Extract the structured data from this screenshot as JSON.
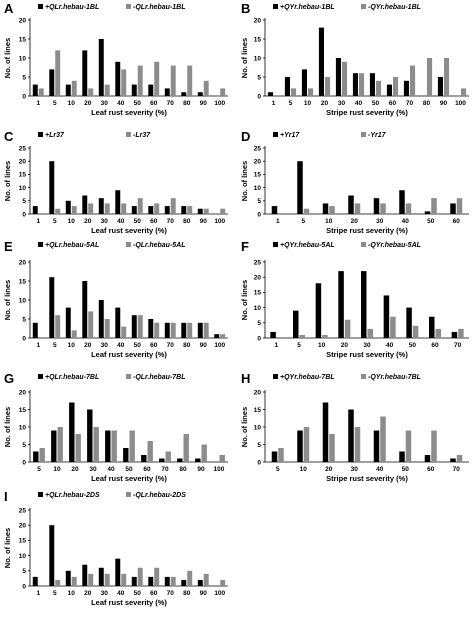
{
  "colors": {
    "pos": "#000000",
    "neg": "#8c8c8c"
  },
  "chart_data": [
    {
      "id": "A",
      "type": "bar",
      "panel_label": "A",
      "categories": [
        "1",
        "5",
        "10",
        "20",
        "30",
        "40",
        "50",
        "60",
        "70",
        "80",
        "90",
        "100"
      ],
      "series": [
        {
          "name": "+QLr.hebau-1BL",
          "values": [
            3,
            7,
            3,
            12,
            15,
            9,
            3,
            3,
            2,
            1,
            1,
            0
          ]
        },
        {
          "name": "-QLr.hebau-1BL",
          "values": [
            2,
            12,
            4,
            2,
            3,
            7,
            8,
            9,
            8,
            8,
            4,
            2
          ]
        }
      ],
      "ylim": [
        0,
        20
      ],
      "yticks": [
        0,
        5,
        10,
        15,
        20
      ],
      "xlabel": "Leaf rust severity (%)",
      "ylabel": "No. of lines"
    },
    {
      "id": "B",
      "type": "bar",
      "panel_label": "B",
      "categories": [
        "1",
        "5",
        "10",
        "20",
        "30",
        "40",
        "50",
        "60",
        "70",
        "80",
        "90",
        "100"
      ],
      "series": [
        {
          "name": "+QYr.hebau-1BL",
          "values": [
            1,
            5,
            7,
            18,
            10,
            6,
            6,
            3,
            4,
            0,
            5,
            0
          ]
        },
        {
          "name": "-QYr.hebau-1BL",
          "values": [
            0,
            2,
            2,
            5,
            9,
            6,
            4,
            5,
            8,
            10,
            10,
            2
          ]
        }
      ],
      "ylim": [
        0,
        20
      ],
      "yticks": [
        0,
        5,
        10,
        15,
        20
      ],
      "xlabel": "Stripe rust severity (%)",
      "ylabel": "No. of lines"
    },
    {
      "id": "C",
      "type": "bar",
      "panel_label": "C",
      "categories": [
        "1",
        "5",
        "10",
        "20",
        "30",
        "40",
        "50",
        "60",
        "70",
        "80",
        "90",
        "100"
      ],
      "series": [
        {
          "name": "+Lr37",
          "values": [
            3,
            20,
            5,
            7,
            6,
            9,
            3,
            3,
            3,
            3,
            2,
            0
          ]
        },
        {
          "name": "-Lr37",
          "values": [
            0,
            2,
            3,
            4,
            4,
            4,
            6,
            4,
            6,
            3,
            2,
            2
          ]
        }
      ],
      "ylim": [
        0,
        25
      ],
      "yticks": [
        0,
        5,
        10,
        15,
        20,
        25
      ],
      "xlabel": "Leaf rust severity (%)",
      "ylabel": "No. of lines"
    },
    {
      "id": "D",
      "type": "bar",
      "panel_label": "D",
      "categories": [
        "1",
        "5",
        "10",
        "20",
        "30",
        "40",
        "50",
        "60"
      ],
      "series": [
        {
          "name": "+Yr17",
          "values": [
            3,
            20,
            4,
            7,
            6,
            9,
            1,
            4
          ]
        },
        {
          "name": "-Yr17",
          "values": [
            0,
            2,
            3,
            4,
            4,
            4,
            6,
            6
          ]
        }
      ],
      "ylim": [
        0,
        25
      ],
      "yticks": [
        0,
        5,
        10,
        15,
        20,
        25
      ],
      "xlabel": "Stripe rust severity (%)",
      "ylabel": "No. of lines"
    },
    {
      "id": "E",
      "type": "bar",
      "panel_label": "E",
      "categories": [
        "1",
        "5",
        "10",
        "20",
        "30",
        "40",
        "50",
        "60",
        "70",
        "80",
        "90",
        "100"
      ],
      "series": [
        {
          "name": "+QLr.hebau-5AL",
          "values": [
            4,
            16,
            8,
            15,
            10,
            8,
            6,
            5,
            4,
            4,
            4,
            1
          ]
        },
        {
          "name": "-QLr.hebau-5AL",
          "values": [
            0,
            6,
            2,
            7,
            5,
            3,
            6,
            4,
            4,
            4,
            4,
            1
          ]
        }
      ],
      "ylim": [
        0,
        20
      ],
      "yticks": [
        0,
        5,
        10,
        15,
        20
      ],
      "xlabel": "Leaf rust severity (%)",
      "ylabel": "No. of lines"
    },
    {
      "id": "F",
      "type": "bar",
      "panel_label": "F",
      "categories": [
        "1",
        "5",
        "10",
        "20",
        "30",
        "40",
        "50",
        "60",
        "70"
      ],
      "series": [
        {
          "name": "+QYr.hebau-5AL",
          "values": [
            2,
            9,
            18,
            22,
            22,
            14,
            10,
            7,
            2
          ]
        },
        {
          "name": "-QYr.hebau-5AL",
          "values": [
            0,
            1,
            1,
            6,
            3,
            7,
            4,
            3,
            3
          ]
        }
      ],
      "ylim": [
        0,
        25
      ],
      "yticks": [
        0,
        5,
        10,
        15,
        20,
        25
      ],
      "xlabel": "Stripe rust severity (%)",
      "ylabel": "No. of lines"
    },
    {
      "id": "G",
      "type": "bar",
      "panel_label": "G",
      "categories": [
        "5",
        "10",
        "20",
        "30",
        "40",
        "50",
        "60",
        "70",
        "80",
        "90",
        "100"
      ],
      "series": [
        {
          "name": "+QLr.hebau-7BL",
          "values": [
            3,
            9,
            17,
            15,
            9,
            4,
            2,
            1,
            1,
            1,
            0
          ]
        },
        {
          "name": "-QLr.hebau-7BL",
          "values": [
            4,
            10,
            8,
            10,
            9,
            9,
            6,
            3,
            8,
            5,
            2
          ]
        }
      ],
      "ylim": [
        0,
        20
      ],
      "yticks": [
        0,
        5,
        10,
        15,
        20
      ],
      "xlabel": "Leaf rust severity (%)",
      "ylabel": "No. of lines"
    },
    {
      "id": "H",
      "type": "bar",
      "panel_label": "H",
      "categories": [
        "5",
        "10",
        "20",
        "30",
        "40",
        "50",
        "60",
        "70"
      ],
      "series": [
        {
          "name": "+QYr.hebau-7BL",
          "values": [
            3,
            9,
            17,
            15,
            9,
            3,
            2,
            1
          ]
        },
        {
          "name": "-QYr.hebau-7BL",
          "values": [
            4,
            10,
            8,
            10,
            13,
            9,
            9,
            2
          ]
        }
      ],
      "ylim": [
        0,
        20
      ],
      "yticks": [
        0,
        5,
        10,
        15,
        20
      ],
      "xlabel": "Stripe rust severity (%)",
      "ylabel": "No. of lines"
    },
    {
      "id": "I",
      "type": "bar",
      "panel_label": "I",
      "categories": [
        "1",
        "5",
        "10",
        "20",
        "30",
        "40",
        "50",
        "60",
        "70",
        "80",
        "90",
        "100"
      ],
      "series": [
        {
          "name": "+QLr.hebau-2DS",
          "values": [
            3,
            20,
            5,
            7,
            6,
            9,
            3,
            3,
            3,
            2,
            2,
            0
          ]
        },
        {
          "name": "-QLr.hebau-2DS",
          "values": [
            0,
            2,
            3,
            4,
            4,
            4,
            6,
            6,
            3,
            5,
            4,
            2
          ]
        }
      ],
      "ylim": [
        0,
        25
      ],
      "yticks": [
        0,
        5,
        10,
        15,
        20,
        25
      ],
      "xlabel": "Leaf rust severity (%)",
      "ylabel": "No. of lines"
    }
  ]
}
